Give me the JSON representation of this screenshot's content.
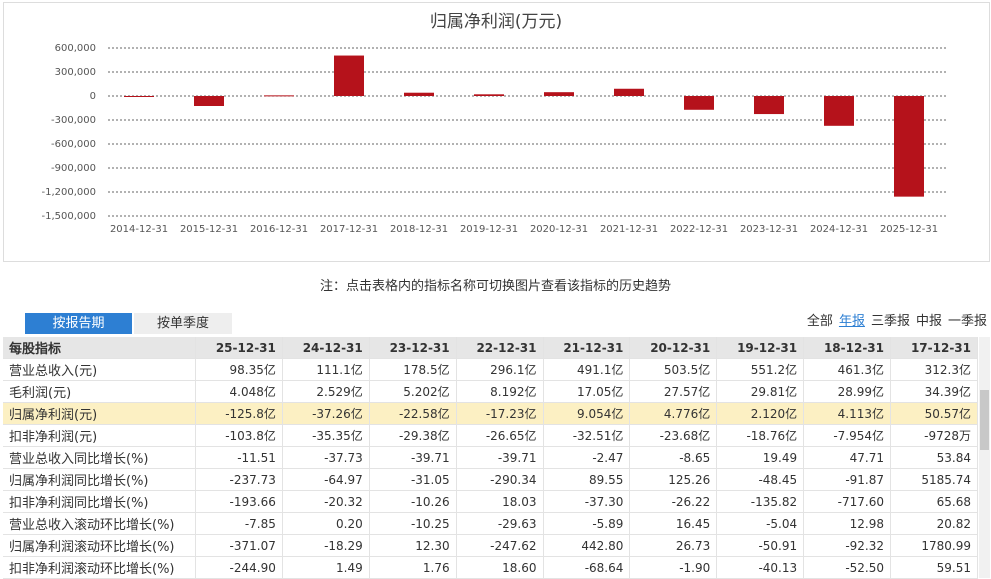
{
  "chart_data": {
    "type": "bar",
    "title": "归属净利润(万元)",
    "categories": [
      "2014-12-31",
      "2015-12-31",
      "2016-12-31",
      "2017-12-31",
      "2018-12-31",
      "2019-12-31",
      "2020-12-31",
      "2021-12-31",
      "2022-12-31",
      "2023-12-31",
      "2024-12-31",
      "2025-12-31"
    ],
    "values": [
      -3000,
      -125000,
      8000,
      505700,
      41130,
      21200,
      47760,
      90540,
      -172300,
      -225800,
      -372600,
      -1258000
    ],
    "color": "#b5121b",
    "ylim": [
      -1500000,
      600000
    ],
    "yticks": [
      {
        "value": -1500000,
        "label": "-1,500,000"
      },
      {
        "value": -1200000,
        "label": "-1,200,000"
      },
      {
        "value": -900000,
        "label": "-900,000"
      },
      {
        "value": -600000,
        "label": "-600,000"
      },
      {
        "value": -300000,
        "label": "-300,000"
      },
      0,
      {
        "value": 300000,
        "label": "300,000"
      },
      {
        "value": 600000,
        "label": "600,000"
      }
    ],
    "grid": true
  },
  "note": "注：点击表格内的指标名称可切换图片查看该指标的历史趋势",
  "tabs": [
    "按报告期",
    "按单季度"
  ],
  "periods": [
    "全部",
    "年报",
    "三季报",
    "中报",
    "一季报"
  ],
  "table": {
    "header": [
      "每股指标",
      "25-12-31",
      "24-12-31",
      "23-12-31",
      "22-12-31",
      "21-12-31",
      "20-12-31",
      "19-12-31",
      "18-12-31",
      "17-12-31"
    ],
    "rows": [
      [
        "营业总收入(元)",
        "98.35亿",
        "111.1亿",
        "178.5亿",
        "296.1亿",
        "491.1亿",
        "503.5亿",
        "551.2亿",
        "461.3亿",
        "312.3亿"
      ],
      [
        "毛利润(元)",
        "4.048亿",
        "2.529亿",
        "5.202亿",
        "8.192亿",
        "17.05亿",
        "27.57亿",
        "29.81亿",
        "28.99亿",
        "34.39亿"
      ],
      [
        "归属净利润(元)",
        "-125.8亿",
        "-37.26亿",
        "-22.58亿",
        "-17.23亿",
        "9.054亿",
        "4.776亿",
        "2.120亿",
        "4.113亿",
        "50.57亿"
      ],
      [
        "扣非净利润(元)",
        "-103.8亿",
        "-35.35亿",
        "-29.38亿",
        "-26.65亿",
        "-32.51亿",
        "-23.68亿",
        "-18.76亿",
        "-7.954亿",
        "-9728万"
      ],
      [
        "营业总收入同比增长(%)",
        "-11.51",
        "-37.73",
        "-39.71",
        "-39.71",
        "-2.47",
        "-8.65",
        "19.49",
        "47.71",
        "53.84"
      ],
      [
        "归属净利润同比增长(%)",
        "-237.73",
        "-64.97",
        "-31.05",
        "-290.34",
        "89.55",
        "125.26",
        "-48.45",
        "-91.87",
        "5185.74"
      ],
      [
        "扣非净利润同比增长(%)",
        "-193.66",
        "-20.32",
        "-10.26",
        "18.03",
        "-37.30",
        "-26.22",
        "-135.82",
        "-717.60",
        "65.68"
      ],
      [
        "营业总收入滚动环比增长(%)",
        "-7.85",
        "0.20",
        "-10.25",
        "-29.63",
        "-5.89",
        "16.45",
        "-5.04",
        "12.98",
        "20.82"
      ],
      [
        "归属净利润滚动环比增长(%)",
        "-371.07",
        "-18.29",
        "12.30",
        "-247.62",
        "442.80",
        "26.73",
        "-50.91",
        "-92.32",
        "1780.99"
      ],
      [
        "扣非净利润滚动环比增长(%)",
        "-244.90",
        "1.49",
        "1.76",
        "18.60",
        "-68.64",
        "-1.90",
        "-40.13",
        "-52.50",
        "59.51"
      ]
    ]
  }
}
